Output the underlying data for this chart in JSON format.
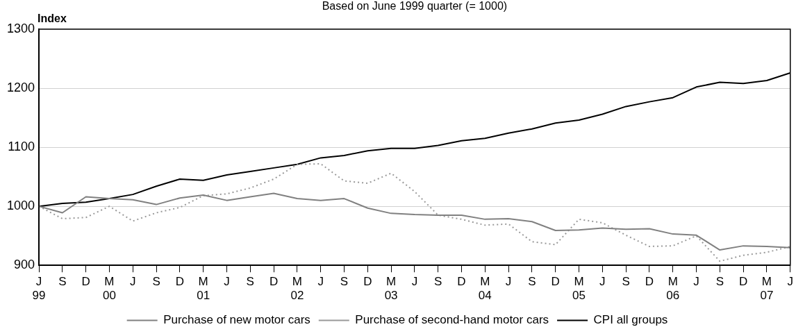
{
  "chart_data": {
    "type": "line",
    "title": "Based on June 1999 quarter (= 1000)",
    "ylabel": "Index",
    "categories": [
      "J\n99",
      "S",
      "D",
      "M\n00",
      "J",
      "S",
      "D",
      "M\n01",
      "J",
      "S",
      "D",
      "M\n02",
      "J",
      "S",
      "D",
      "M\n03",
      "J",
      "S",
      "D",
      "M\n04",
      "J",
      "S",
      "D",
      "M\n05",
      "J",
      "S",
      "D",
      "M\n06",
      "J",
      "S",
      "D",
      "M\n07",
      "J"
    ],
    "series": [
      {
        "name": "Purchase of new motor cars",
        "color": "#808080",
        "line_style": "solid",
        "values": [
          1000,
          989,
          1016,
          1013,
          1011,
          1003,
          1014,
          1019,
          1010,
          1016,
          1022,
          1013,
          1010,
          1013,
          997,
          988,
          986,
          985,
          985,
          978,
          979,
          974,
          959,
          960,
          963,
          961,
          962,
          953,
          951,
          926,
          933,
          932,
          930
        ]
      },
      {
        "name": "Purchase of second-hand motor cars",
        "color": "#999999",
        "line_style": "dotted",
        "values": [
          1000,
          979,
          981,
          1000,
          975,
          989,
          998,
          1018,
          1021,
          1031,
          1046,
          1071,
          1072,
          1043,
          1039,
          1056,
          1025,
          985,
          978,
          968,
          970,
          940,
          935,
          978,
          972,
          951,
          932,
          933,
          950,
          907,
          917,
          922,
          932
        ]
      },
      {
        "name": "CPI all groups",
        "color": "#000000",
        "line_style": "solid",
        "values": [
          1000,
          1005,
          1007,
          1013,
          1020,
          1034,
          1046,
          1044,
          1053,
          1059,
          1065,
          1071,
          1082,
          1086,
          1094,
          1098,
          1098,
          1103,
          1111,
          1115,
          1124,
          1131,
          1141,
          1146,
          1156,
          1169,
          1177,
          1184,
          1202,
          1210,
          1208,
          1213,
          1226
        ]
      }
    ],
    "ylim": [
      900,
      1300
    ],
    "yticks": [
      900,
      1000,
      1100,
      1200,
      1300
    ],
    "grid": "y",
    "legend": "bottom",
    "marker": "none"
  }
}
